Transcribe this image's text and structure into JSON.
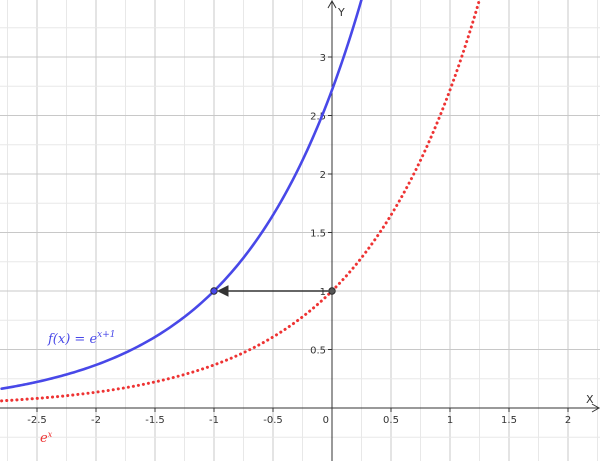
{
  "chart_data": {
    "type": "line",
    "xlabel": "X",
    "ylabel": "Y",
    "xlim": [
      -2.8,
      2.27
    ],
    "ylim": [
      -0.1,
      3.5
    ],
    "grid": true,
    "x_ticks": [
      -2.5,
      -2,
      -1.5,
      -1,
      -0.5,
      0,
      0.5,
      1,
      1.5,
      2
    ],
    "x_tick_labels": [
      "-2.5",
      "-2",
      "-1.5",
      "-1",
      "-0.5",
      "0",
      "0.5",
      "1",
      "1.5",
      "2"
    ],
    "y_ticks": [
      0.5,
      1,
      1.5,
      2,
      2.5,
      3
    ],
    "y_tick_labels": [
      "0.5",
      "1",
      "1.5",
      "2",
      "2.5",
      "3"
    ],
    "series": [
      {
        "label_main": "f(x)  =  e",
        "label_sup": "x+1",
        "color": "#4848e8",
        "style": "solid",
        "x": [
          -2.8,
          -2.5,
          -2,
          -1.5,
          -1,
          -0.5,
          0,
          0.25
        ],
        "y": [
          0.165,
          0.223,
          0.368,
          0.607,
          1.0,
          1.649,
          2.718,
          3.49
        ]
      },
      {
        "label_main": "e",
        "label_sup": "x",
        "color": "#ee3333",
        "style": "dotted",
        "x": [
          -2.8,
          -2.5,
          -2,
          -1.5,
          -1,
          -0.5,
          0,
          0.5,
          1,
          1.25
        ],
        "y": [
          0.061,
          0.082,
          0.135,
          0.223,
          0.368,
          0.607,
          1.0,
          1.649,
          2.718,
          3.49
        ]
      }
    ],
    "points": [
      {
        "x": -1,
        "y": 1,
        "color": "#4848e8"
      },
      {
        "x": 0,
        "y": 1,
        "color": "#555555"
      }
    ],
    "arrow": {
      "from": [
        0,
        1
      ],
      "to": [
        -1,
        1
      ],
      "color": "#333333"
    }
  }
}
